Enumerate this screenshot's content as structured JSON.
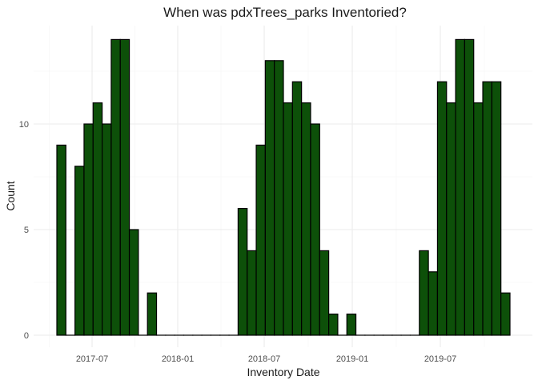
{
  "chart_data": {
    "type": "bar",
    "title": "When was pdxTrees_parks Inventoried?",
    "xlabel": "Inventory Date",
    "ylabel": "Count",
    "bar_color": "#0d5009",
    "ylim": [
      0,
      14.5
    ],
    "y_ticks": [
      0,
      5,
      10
    ],
    "x_ticks": [
      "2017-07",
      "2018-01",
      "2018-07",
      "2019-01",
      "2019-07"
    ],
    "grid": true,
    "values": [
      9,
      0,
      8,
      10,
      11,
      10,
      14,
      14,
      5,
      0,
      2,
      0,
      0,
      0,
      0,
      0,
      0,
      0,
      0,
      0,
      6,
      4,
      9,
      13,
      13,
      11,
      12,
      11,
      10,
      4,
      1,
      0,
      1,
      0,
      0,
      0,
      0,
      0,
      0,
      0,
      4,
      3,
      12,
      11,
      14,
      14,
      11,
      12,
      12,
      2
    ]
  }
}
